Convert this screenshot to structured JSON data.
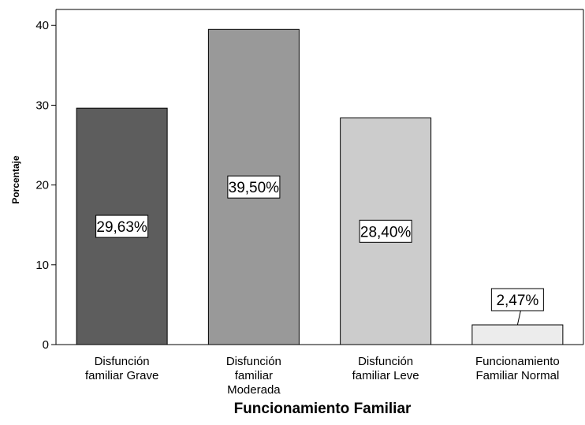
{
  "chart_data": {
    "type": "bar",
    "categories": [
      [
        "Disfunción",
        "familiar Grave"
      ],
      [
        "Disfunción",
        "familiar",
        "Moderada"
      ],
      [
        "Disfunción",
        "familiar Leve"
      ],
      [
        "Funcionamiento",
        "Familiar Normal"
      ]
    ],
    "values": [
      29.63,
      39.5,
      28.4,
      2.47
    ],
    "data_labels": [
      "29,63%",
      "39,50%",
      "28,40%",
      "2,47%"
    ],
    "bar_colors": [
      "#5d5d5d",
      "#999999",
      "#cccccc",
      "#ececec"
    ],
    "xlabel": "Funcionamiento Familiar",
    "ylabel": "Porcentaje",
    "ylim": [
      0,
      42
    ],
    "yticks": [
      0,
      10,
      20,
      30,
      40
    ],
    "ytick_labels": [
      "0",
      "10",
      "20",
      "30",
      "40"
    ],
    "grid": false
  }
}
